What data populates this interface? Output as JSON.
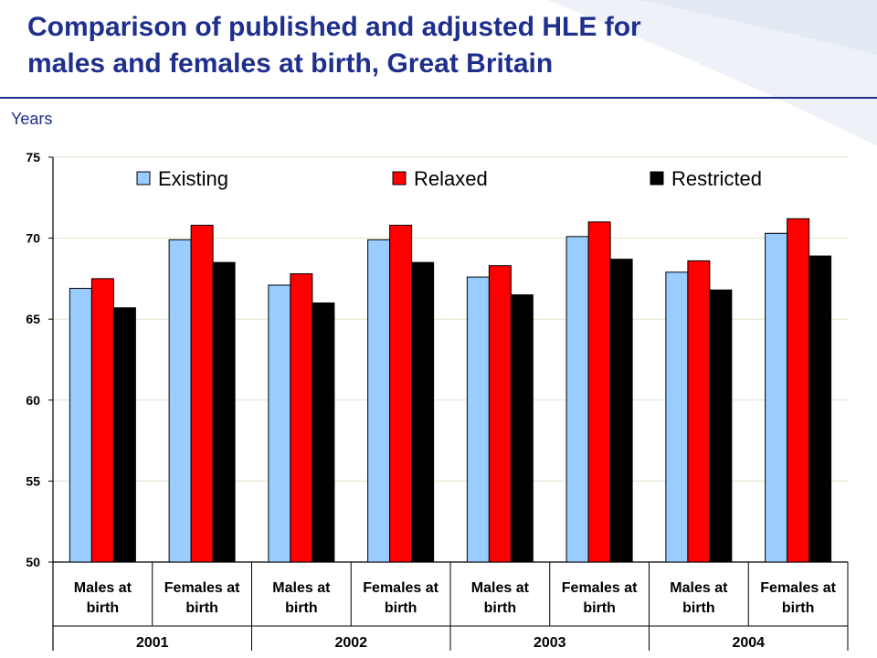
{
  "title_line1": "Comparison of published and adjusted HLE for",
  "title_line2": "males and females at birth, Great Britain",
  "units_label": "Years",
  "colors": {
    "title": "#1f2f8c",
    "Existing": "#99ccff",
    "Relaxed": "#ff0000",
    "Restricted": "#000000"
  },
  "chart_data": {
    "type": "bar",
    "categories": [
      "Males at birth",
      "Females at birth",
      "Males at birth",
      "Females at birth",
      "Males at birth",
      "Females at birth",
      "Males at birth",
      "Females at birth"
    ],
    "category_lines": [
      [
        "Males at",
        "birth"
      ],
      [
        "Females at",
        "birth"
      ],
      [
        "Males at",
        "birth"
      ],
      [
        "Females at",
        "birth"
      ],
      [
        "Males at",
        "birth"
      ],
      [
        "Females at",
        "birth"
      ],
      [
        "Males at",
        "birth"
      ],
      [
        "Females at",
        "birth"
      ]
    ],
    "groups": [
      "2001",
      "2002",
      "2003",
      "2004"
    ],
    "series": [
      {
        "name": "Existing",
        "values": [
          66.9,
          69.9,
          67.1,
          69.9,
          67.6,
          70.1,
          67.9,
          70.3
        ]
      },
      {
        "name": "Relaxed",
        "values": [
          67.5,
          70.8,
          67.8,
          70.8,
          68.3,
          71.0,
          68.6,
          71.2
        ]
      },
      {
        "name": "Restricted",
        "values": [
          65.7,
          68.5,
          66.0,
          68.5,
          66.5,
          68.7,
          66.8,
          68.9
        ]
      }
    ],
    "ylim": [
      50,
      75
    ],
    "yticks": [
      "50",
      "55",
      "60",
      "65",
      "70",
      "75"
    ],
    "ylabel": "Years",
    "xlabel": "",
    "grid": true,
    "legend": "top"
  }
}
